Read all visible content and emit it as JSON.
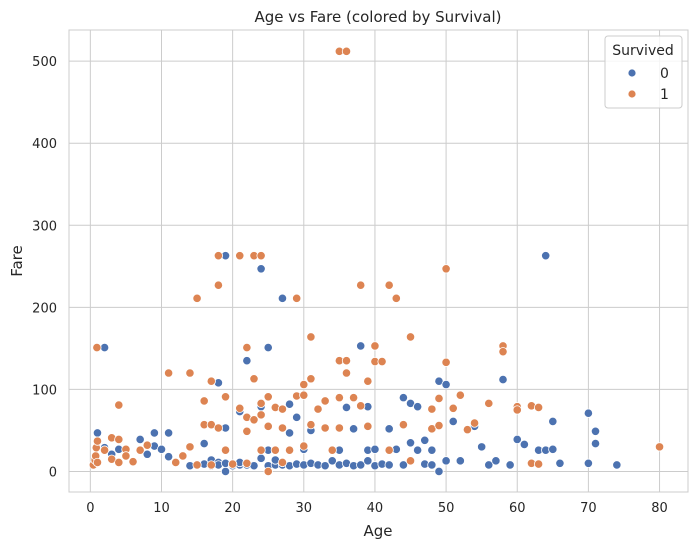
{
  "chart_data": {
    "type": "scatter",
    "title": "Age vs Fare (colored by Survival)",
    "xlabel": "Age",
    "ylabel": "Fare",
    "xlim": [
      -3,
      84
    ],
    "ylim": [
      -25,
      538
    ],
    "xticks": [
      0,
      10,
      20,
      30,
      40,
      50,
      60,
      70,
      80
    ],
    "yticks": [
      0,
      100,
      200,
      300,
      400,
      500
    ],
    "grid": true,
    "legend": {
      "title": "Survived",
      "placement": "top-right"
    },
    "series": [
      {
        "name": "0",
        "color": "#4c72b0",
        "points": [
          [
            1,
            47
          ],
          [
            2,
            151
          ],
          [
            2,
            29
          ],
          [
            3,
            21
          ],
          [
            4,
            27
          ],
          [
            7,
            39
          ],
          [
            8,
            21
          ],
          [
            9,
            31
          ],
          [
            9,
            47
          ],
          [
            10,
            27
          ],
          [
            11,
            47
          ],
          [
            11,
            18
          ],
          [
            14,
            7
          ],
          [
            16,
            9
          ],
          [
            16,
            34
          ],
          [
            17,
            7
          ],
          [
            17,
            14
          ],
          [
            18,
            108
          ],
          [
            18,
            11
          ],
          [
            18,
            8
          ],
          [
            19,
            263
          ],
          [
            19,
            53
          ],
          [
            19,
            0
          ],
          [
            19,
            10
          ],
          [
            20,
            7
          ],
          [
            20,
            9
          ],
          [
            21,
            73
          ],
          [
            21,
            8
          ],
          [
            21,
            11
          ],
          [
            22,
            135
          ],
          [
            22,
            8
          ],
          [
            22,
            10
          ],
          [
            23,
            7
          ],
          [
            24,
            247
          ],
          [
            24,
            79
          ],
          [
            24,
            16
          ],
          [
            25,
            151
          ],
          [
            25,
            26
          ],
          [
            25,
            7
          ],
          [
            26,
            8
          ],
          [
            26,
            14
          ],
          [
            27,
            211
          ],
          [
            27,
            8
          ],
          [
            28,
            47
          ],
          [
            28,
            7
          ],
          [
            28,
            82
          ],
          [
            29,
            66
          ],
          [
            29,
            9
          ],
          [
            30,
            8
          ],
          [
            30,
            27
          ],
          [
            31,
            50
          ],
          [
            31,
            10
          ],
          [
            32,
            8
          ],
          [
            32,
            76
          ],
          [
            33,
            7
          ],
          [
            34,
            13
          ],
          [
            35,
            26
          ],
          [
            35,
            8
          ],
          [
            36,
            78
          ],
          [
            36,
            10
          ],
          [
            37,
            52
          ],
          [
            37,
            7
          ],
          [
            38,
            153
          ],
          [
            38,
            8
          ],
          [
            39,
            79
          ],
          [
            39,
            26
          ],
          [
            39,
            13
          ],
          [
            40,
            7
          ],
          [
            40,
            27
          ],
          [
            41,
            9
          ],
          [
            42,
            52
          ],
          [
            42,
            8
          ],
          [
            43,
            27
          ],
          [
            44,
            90
          ],
          [
            44,
            8
          ],
          [
            45,
            83
          ],
          [
            45,
            35
          ],
          [
            46,
            79
          ],
          [
            46,
            26
          ],
          [
            47,
            38
          ],
          [
            47,
            9
          ],
          [
            48,
            26
          ],
          [
            48,
            8
          ],
          [
            49,
            110
          ],
          [
            49,
            0
          ],
          [
            50,
            106
          ],
          [
            50,
            13
          ],
          [
            51,
            77
          ],
          [
            51,
            61
          ],
          [
            52,
            13
          ],
          [
            54,
            55
          ],
          [
            55,
            30
          ],
          [
            56,
            8
          ],
          [
            57,
            13
          ],
          [
            58,
            112
          ],
          [
            59,
            8
          ],
          [
            60,
            39
          ],
          [
            61,
            33
          ],
          [
            62,
            10
          ],
          [
            63,
            26
          ],
          [
            64,
            263
          ],
          [
            64,
            26
          ],
          [
            65,
            61
          ],
          [
            65,
            27
          ],
          [
            66,
            10
          ],
          [
            70,
            71
          ],
          [
            70,
            10
          ],
          [
            71,
            49
          ],
          [
            71,
            34
          ],
          [
            74,
            8
          ]
        ]
      },
      {
        "name": "1",
        "color": "#dd8452",
        "points": [
          [
            0.42,
            8
          ],
          [
            0.67,
            14
          ],
          [
            0.75,
            19
          ],
          [
            0.83,
            29
          ],
          [
            0.92,
            151
          ],
          [
            1,
            11
          ],
          [
            1,
            37
          ],
          [
            2,
            26
          ],
          [
            3,
            41
          ],
          [
            3,
            15
          ],
          [
            4,
            81
          ],
          [
            4,
            39
          ],
          [
            4,
            11
          ],
          [
            5,
            27
          ],
          [
            5,
            19
          ],
          [
            6,
            12
          ],
          [
            7,
            26
          ],
          [
            8,
            32
          ],
          [
            11,
            120
          ],
          [
            12,
            11
          ],
          [
            13,
            19
          ],
          [
            14,
            120
          ],
          [
            14,
            30
          ],
          [
            15,
            211
          ],
          [
            15,
            8
          ],
          [
            16,
            86
          ],
          [
            16,
            57
          ],
          [
            17,
            110
          ],
          [
            17,
            57
          ],
          [
            17,
            8
          ],
          [
            18,
            263
          ],
          [
            18,
            227
          ],
          [
            18,
            53
          ],
          [
            19,
            91
          ],
          [
            19,
            26
          ],
          [
            20,
            9
          ],
          [
            21,
            263
          ],
          [
            21,
            77
          ],
          [
            22,
            151
          ],
          [
            22,
            66
          ],
          [
            22,
            49
          ],
          [
            22,
            10
          ],
          [
            23,
            263
          ],
          [
            23,
            113
          ],
          [
            23,
            63
          ],
          [
            24,
            263
          ],
          [
            24,
            83
          ],
          [
            24,
            69
          ],
          [
            24,
            26
          ],
          [
            25,
            91
          ],
          [
            25,
            55
          ],
          [
            25,
            0
          ],
          [
            26,
            78
          ],
          [
            26,
            26
          ],
          [
            27,
            76
          ],
          [
            27,
            53
          ],
          [
            27,
            11
          ],
          [
            28,
            26
          ],
          [
            29,
            211
          ],
          [
            29,
            92
          ],
          [
            30,
            106
          ],
          [
            30,
            93
          ],
          [
            30,
            31
          ],
          [
            31,
            164
          ],
          [
            31,
            113
          ],
          [
            31,
            57
          ],
          [
            32,
            76
          ],
          [
            33,
            86
          ],
          [
            33,
            53
          ],
          [
            34,
            26
          ],
          [
            35,
            512
          ],
          [
            35,
            135
          ],
          [
            35,
            90
          ],
          [
            35,
            53
          ],
          [
            36,
            512
          ],
          [
            36,
            135
          ],
          [
            36,
            120
          ],
          [
            37,
            90
          ],
          [
            38,
            227
          ],
          [
            38,
            80
          ],
          [
            39,
            110
          ],
          [
            39,
            55
          ],
          [
            40,
            153
          ],
          [
            40,
            134
          ],
          [
            41,
            134
          ],
          [
            42,
            227
          ],
          [
            42,
            26
          ],
          [
            43,
            211
          ],
          [
            44,
            57
          ],
          [
            45,
            164
          ],
          [
            45,
            13
          ],
          [
            48,
            76
          ],
          [
            48,
            52
          ],
          [
            49,
            89
          ],
          [
            49,
            56
          ],
          [
            50,
            247
          ],
          [
            50,
            133
          ],
          [
            51,
            77
          ],
          [
            52,
            93
          ],
          [
            53,
            51
          ],
          [
            54,
            59
          ],
          [
            56,
            83
          ],
          [
            58,
            153
          ],
          [
            58,
            146
          ],
          [
            60,
            79
          ],
          [
            60,
            75
          ],
          [
            62,
            80
          ],
          [
            62,
            10
          ],
          [
            63,
            78
          ],
          [
            63,
            9
          ],
          [
            80,
            30
          ]
        ]
      }
    ]
  }
}
